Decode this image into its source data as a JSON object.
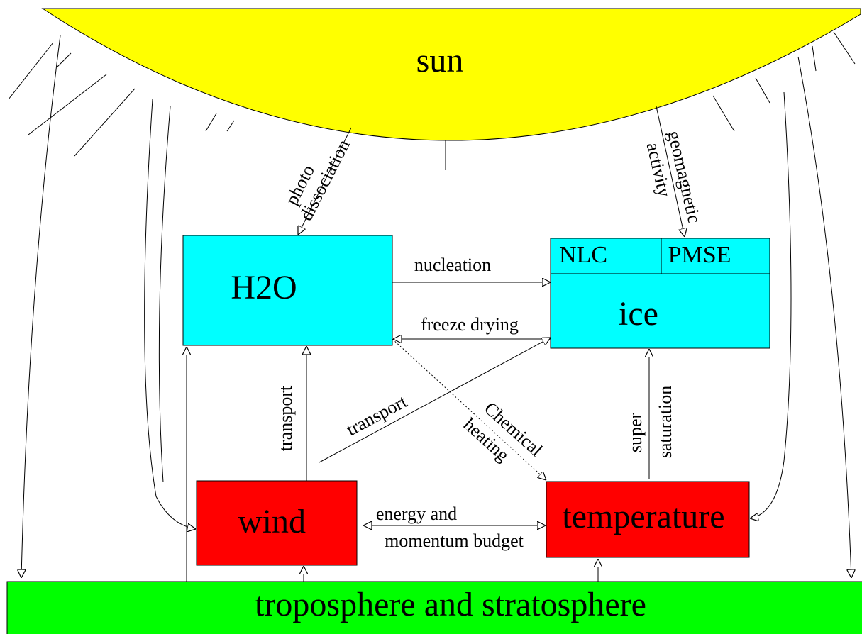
{
  "nodes": {
    "sun": "sun",
    "h2o": "H2O",
    "ice": "ice",
    "nlc": "NLC",
    "pmse": "PMSE",
    "wind": "wind",
    "temperature": "temperature",
    "ground": "troposphere and stratosphere"
  },
  "edges": {
    "photo_dissociation": [
      "photo",
      "dissociation"
    ],
    "geomagnetic_activity": [
      "geomagnetic",
      "activity"
    ],
    "nucleation": "nucleation",
    "freeze_drying": "freeze drying",
    "transport_vertical": "transport",
    "transport_diagonal": "transport",
    "chemical_heating": [
      "Chemical",
      "heating"
    ],
    "super_saturation": [
      "super",
      "saturation"
    ],
    "energy_momentum": [
      "energy and",
      "momentum budget"
    ]
  }
}
